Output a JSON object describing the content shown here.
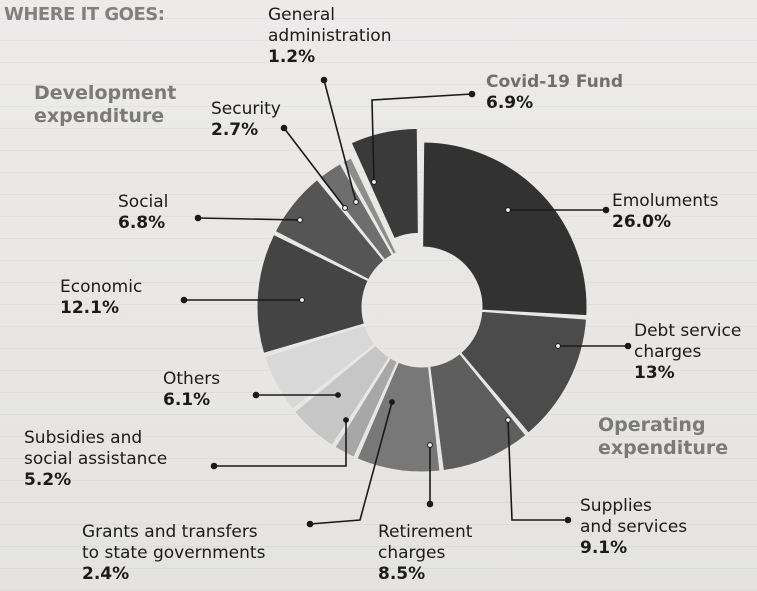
{
  "heading": "WHERE IT GOES:",
  "groups": {
    "development": [
      "Development",
      "expenditure"
    ],
    "operating": [
      "Operating",
      "expenditure"
    ]
  },
  "labels": {
    "general_administration": [
      "General",
      "administration"
    ],
    "covid": [
      "Covid-19 Fund"
    ],
    "security": [
      "Security"
    ],
    "social": [
      "Social"
    ],
    "economic": [
      "Economic"
    ],
    "others": [
      "Others"
    ],
    "subsidies": [
      "Subsidies and",
      "social assistance"
    ],
    "grants": [
      "Grants and transfers",
      "to state governments"
    ],
    "retirement": [
      "Retirement",
      "charges"
    ],
    "supplies": [
      "Supplies",
      "and services"
    ],
    "debt": [
      "Debt service",
      "charges"
    ],
    "emoluments": [
      "Emoluments"
    ]
  },
  "chart_data": {
    "type": "pie",
    "donut": true,
    "title": "WHERE IT GOES:",
    "groups": [
      {
        "name": "Development expenditure",
        "categories": [
          "General administration",
          "Security",
          "Social",
          "Economic"
        ]
      },
      {
        "name": "Operating expenditure",
        "categories": [
          "Emoluments",
          "Debt service charges",
          "Supplies and services",
          "Retirement charges",
          "Grants and transfers to state governments",
          "Subsidies and social assistance",
          "Others"
        ]
      }
    ],
    "slices": [
      {
        "key": "covid",
        "label": "Covid-19 Fund",
        "value": 6.9,
        "display": "6.9%",
        "color": "#3a3a3a",
        "exploded": true
      },
      {
        "key": "emoluments",
        "label": "Emoluments",
        "value": 26.0,
        "display": "26.0%",
        "color": "#323232"
      },
      {
        "key": "debt",
        "label": "Debt service charges",
        "value": 13,
        "display": "13%",
        "color": "#4b4b4b"
      },
      {
        "key": "supplies",
        "label": "Supplies and services",
        "value": 9.1,
        "display": "9.1%",
        "color": "#5e5e5e"
      },
      {
        "key": "retirement",
        "label": "Retirement charges",
        "value": 8.5,
        "display": "8.5%",
        "color": "#787878"
      },
      {
        "key": "grants",
        "label": "Grants and transfers to state governments",
        "value": 2.4,
        "display": "2.4%",
        "color": "#a7a7a7"
      },
      {
        "key": "subsidies",
        "label": "Subsidies and social assistance",
        "value": 5.2,
        "display": "5.2%",
        "color": "#c6c6c6"
      },
      {
        "key": "others",
        "label": "Others",
        "value": 6.1,
        "display": "6.1%",
        "color": "#d8d8d8"
      },
      {
        "key": "economic",
        "label": "Economic",
        "value": 12.1,
        "display": "12.1%",
        "color": "#444444"
      },
      {
        "key": "social",
        "label": "Social",
        "value": 6.8,
        "display": "6.8%",
        "color": "#555555"
      },
      {
        "key": "security",
        "label": "Security",
        "value": 2.7,
        "display": "2.7%",
        "color": "#6e6e6e"
      },
      {
        "key": "general_administration",
        "label": "General administration",
        "value": 1.2,
        "display": "1.2%",
        "color": "#8d8d8d"
      }
    ]
  }
}
